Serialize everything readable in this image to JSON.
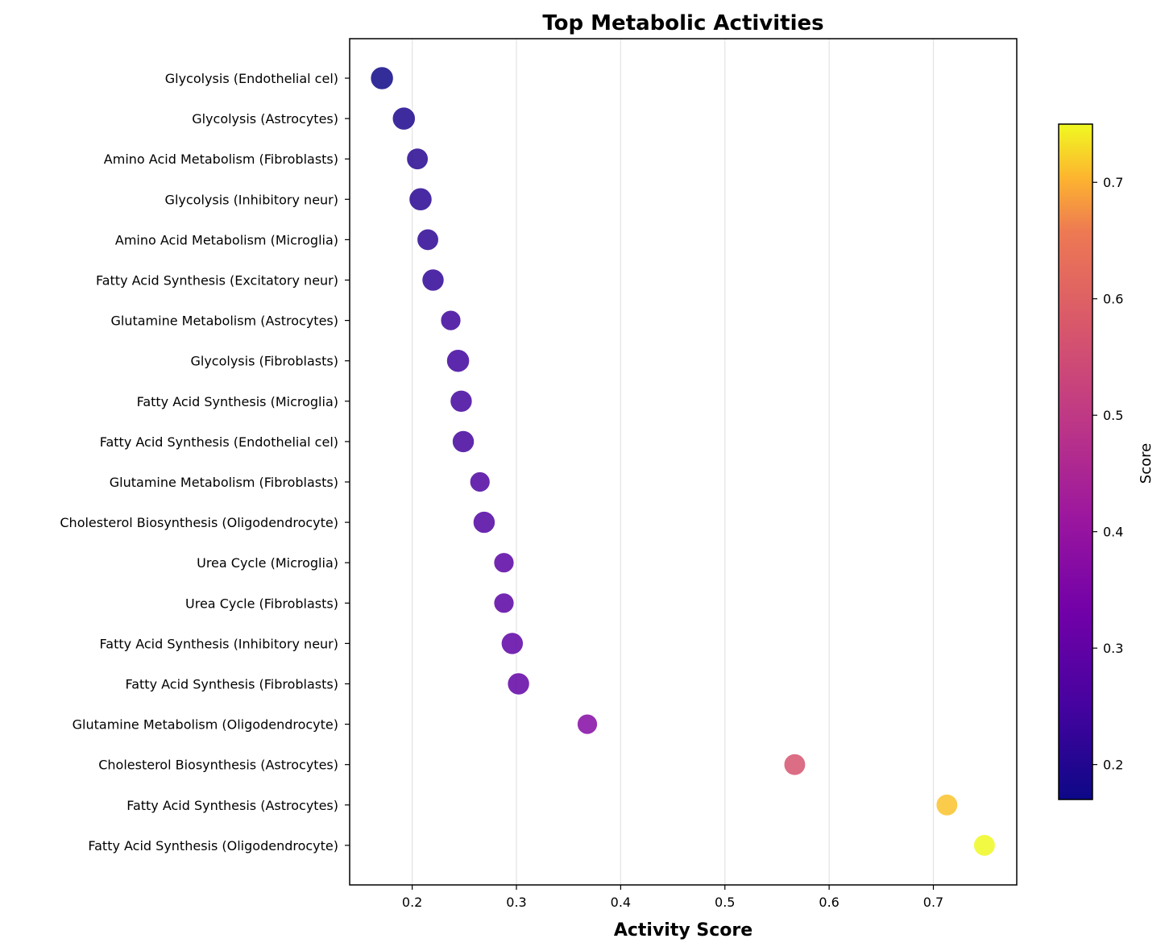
{
  "chart_data": {
    "type": "scatter",
    "title": "Top Metabolic Activities",
    "xlabel": "Activity Score",
    "ylabel": "",
    "xlim": [
      0.14,
      0.78
    ],
    "xticks": [
      0.2,
      0.3,
      0.4,
      0.5,
      0.6,
      0.7
    ],
    "xtick_labels": [
      "0.2",
      "0.3",
      "0.4",
      "0.5",
      "0.6",
      "0.7"
    ],
    "grid": "x",
    "colormap": "plasma",
    "colorbar": {
      "label": "Score",
      "range": [
        0.17,
        0.75
      ],
      "ticks": [
        0.2,
        0.3,
        0.4,
        0.5,
        0.6,
        0.7
      ],
      "tick_labels": [
        "0.2",
        "0.3",
        "0.4",
        "0.5",
        "0.6",
        "0.7"
      ]
    },
    "points": [
      {
        "label": "Glycolysis (Endothelial cel)",
        "x": 0.171,
        "size": 1.0
      },
      {
        "label": "Glycolysis (Astrocytes)",
        "x": 0.192,
        "size": 1.0
      },
      {
        "label": "Amino Acid Metabolism (Fibroblasts)",
        "x": 0.205,
        "size": 0.85
      },
      {
        "label": "Glycolysis (Inhibitory neur)",
        "x": 0.208,
        "size": 1.0
      },
      {
        "label": "Amino Acid Metabolism (Microglia)",
        "x": 0.215,
        "size": 0.85
      },
      {
        "label": "Fatty Acid Synthesis (Excitatory neur)",
        "x": 0.22,
        "size": 0.9
      },
      {
        "label": "Glutamine Metabolism (Astrocytes)",
        "x": 0.237,
        "size": 0.7
      },
      {
        "label": "Glycolysis (Fibroblasts)",
        "x": 0.244,
        "size": 1.0
      },
      {
        "label": "Fatty Acid Synthesis (Microglia)",
        "x": 0.247,
        "size": 0.9
      },
      {
        "label": "Fatty Acid Synthesis (Endothelial cel)",
        "x": 0.249,
        "size": 0.9
      },
      {
        "label": "Glutamine Metabolism (Fibroblasts)",
        "x": 0.265,
        "size": 0.7
      },
      {
        "label": "Cholesterol Biosynthesis (Oligodendrocyte)",
        "x": 0.269,
        "size": 0.9
      },
      {
        "label": "Urea Cycle (Microglia)",
        "x": 0.288,
        "size": 0.7
      },
      {
        "label": "Urea Cycle (Fibroblasts)",
        "x": 0.288,
        "size": 0.7
      },
      {
        "label": "Fatty Acid Synthesis (Inhibitory neur)",
        "x": 0.296,
        "size": 0.9
      },
      {
        "label": "Fatty Acid Synthesis (Fibroblasts)",
        "x": 0.302,
        "size": 0.9
      },
      {
        "label": "Glutamine Metabolism (Oligodendrocyte)",
        "x": 0.368,
        "size": 0.7
      },
      {
        "label": "Cholesterol Biosynthesis (Astrocytes)",
        "x": 0.567,
        "size": 0.85
      },
      {
        "label": "Fatty Acid Synthesis (Astrocytes)",
        "x": 0.713,
        "size": 0.85
      },
      {
        "label": "Fatty Acid Synthesis (Oligodendrocyte)",
        "x": 0.749,
        "size": 0.85
      }
    ]
  }
}
